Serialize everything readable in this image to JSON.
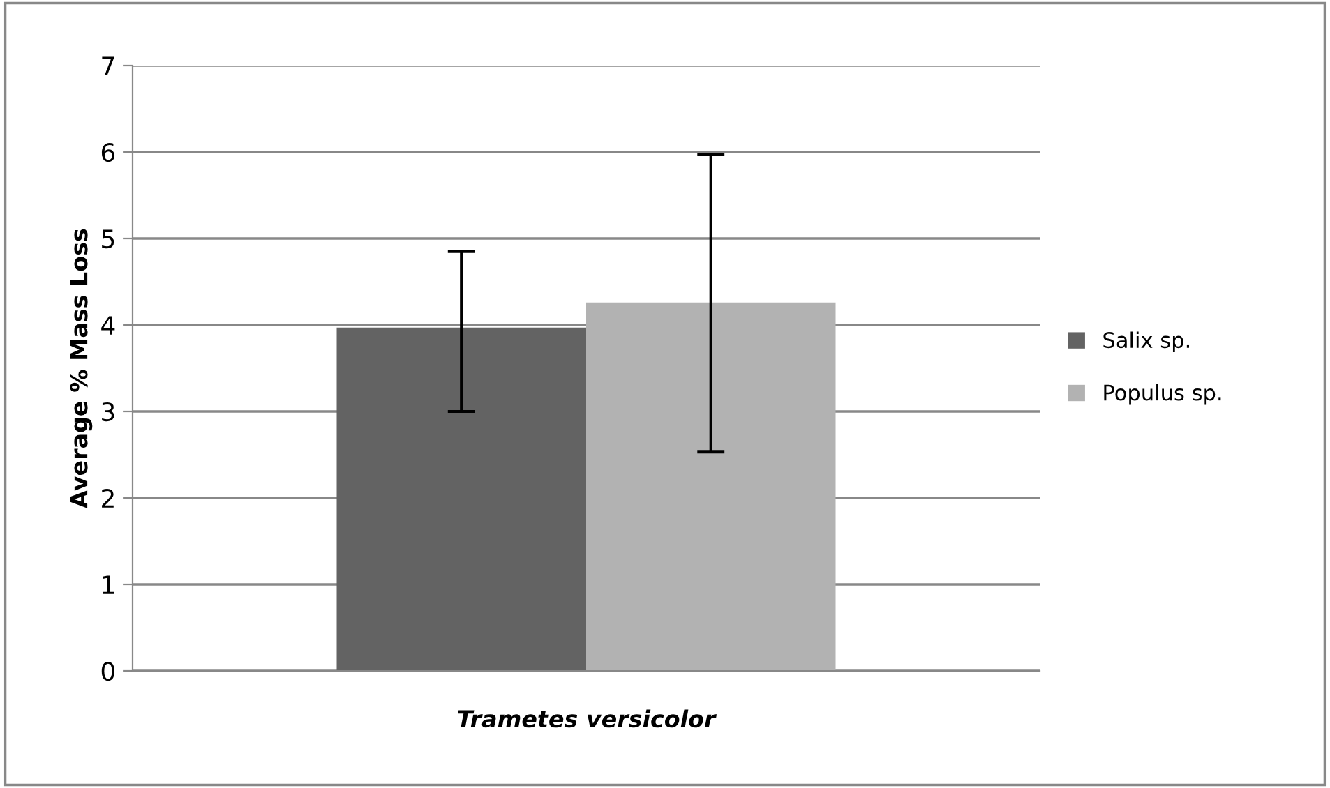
{
  "chart_data": {
    "type": "bar",
    "ylabel": "Average % Mass Loss",
    "categories": [
      "Trametes versicolor"
    ],
    "series": [
      {
        "name": "Salix sp.",
        "color": "#636363",
        "values": [
          3.97
        ],
        "errors": [
          [
            3.0,
            4.85
          ]
        ]
      },
      {
        "name": "Populus sp.",
        "color": "#b2b2b2",
        "values": [
          4.26
        ],
        "errors": [
          [
            2.53,
            5.97
          ]
        ]
      }
    ],
    "ylim": [
      0,
      7
    ],
    "yticks": [
      0,
      1,
      2,
      3,
      4,
      5,
      6,
      7
    ],
    "grid": "y",
    "legend": "right"
  }
}
